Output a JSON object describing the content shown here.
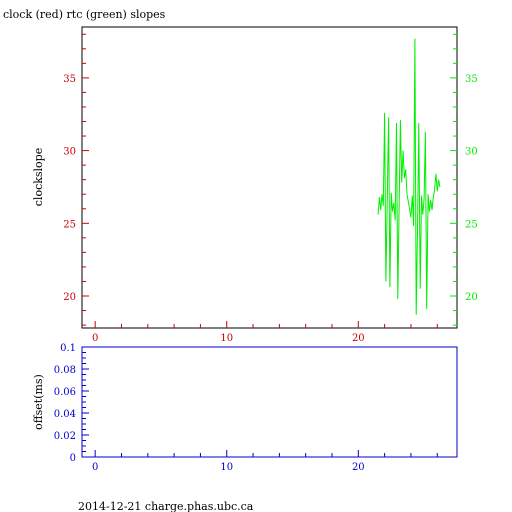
{
  "title": "clock (red) rtc (green) slopes",
  "footer": "2014-12-21 charge.phas.ubc.ca",
  "colors": {
    "clock": "#cc0000",
    "rtc": "#00ee00",
    "offset_axis": "#0000cc",
    "frame": "#000000"
  },
  "chart_data": [
    {
      "type": "line",
      "title": "clock (red) rtc (green) slopes",
      "ylabel": "clockslope",
      "xlim": [
        -1,
        27.5
      ],
      "ylim": [
        17.8,
        38.5
      ],
      "x_ticks": [
        0,
        10,
        20
      ],
      "y_ticks_left": [
        20,
        25,
        30,
        35
      ],
      "y_ticks_right": [
        20,
        25,
        30,
        35
      ],
      "grid": false,
      "series": [
        {
          "color": "#00ee00",
          "x": [
            21.5,
            21.6,
            21.7,
            21.8,
            21.9,
            22.0,
            22.1,
            22.2,
            22.3,
            22.4,
            22.5,
            22.6,
            22.7,
            22.8,
            22.9,
            23.0,
            23.1,
            23.2,
            23.3,
            23.4,
            23.5,
            23.6,
            23.7,
            23.8,
            23.9,
            24.0,
            24.1,
            24.2,
            24.3,
            24.4,
            24.5,
            24.6,
            24.7,
            24.8,
            24.9,
            25.0,
            25.1,
            25.2,
            25.3,
            25.4,
            25.5,
            25.6,
            25.7,
            25.8,
            25.9,
            26.0,
            26.1,
            26.2
          ],
          "values": [
            25.6,
            26.8,
            25.9,
            27.0,
            26.2,
            32.6,
            21.0,
            26.8,
            32.3,
            20.6,
            27.1,
            25.8,
            26.4,
            25.2,
            31.9,
            19.8,
            26.0,
            32.1,
            27.8,
            30.0,
            28.1,
            28.7,
            27.0,
            26.5,
            26.0,
            25.4,
            26.9,
            24.8,
            37.7,
            18.7,
            24.5,
            31.9,
            20.5,
            26.9,
            25.6,
            26.7,
            31.3,
            19.1,
            27.0,
            25.8,
            26.6,
            25.9,
            26.8,
            27.3,
            28.4,
            27.2,
            28.0,
            27.5
          ]
        }
      ]
    },
    {
      "type": "line",
      "ylabel": "offset(ms)",
      "xlim": [
        -1,
        27.5
      ],
      "ylim": [
        0,
        0.1
      ],
      "x_ticks": [
        0,
        10,
        20
      ],
      "y_ticks": [
        0,
        0.02,
        0.04,
        0.06,
        0.08,
        0.1
      ],
      "grid": false,
      "series": []
    }
  ]
}
